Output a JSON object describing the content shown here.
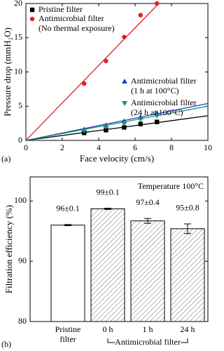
{
  "chart_data": [
    {
      "type": "scatter",
      "panel_label": "(a)",
      "x_label": "Face velocity (cm/s)",
      "y_label": "Pressure drop (mmH₂O)",
      "xlim": [
        0,
        10
      ],
      "ylim": [
        0,
        20
      ],
      "xticks": [
        0,
        2,
        4,
        6,
        8,
        10
      ],
      "yticks": [
        0,
        5,
        10,
        15,
        20
      ],
      "series": [
        {
          "name": "Pristine filter",
          "color": "#000000",
          "marker": "square",
          "x": [
            3.2,
            4.4,
            5.4,
            6.3,
            7.2
          ],
          "y": [
            1.1,
            1.5,
            1.9,
            2.4,
            2.7
          ],
          "fit_x": [
            0,
            10
          ],
          "fit_y": [
            0,
            3.6
          ]
        },
        {
          "name": "Antimicrobial filter\n(No thermal exposure)",
          "color": "#e02020",
          "marker": "circle",
          "x": [
            3.2,
            4.4,
            5.4,
            6.3,
            7.2
          ],
          "y": [
            8.3,
            11.6,
            15.1,
            18.3,
            20
          ],
          "fit_x": [
            0,
            7.3
          ],
          "fit_y": [
            0,
            20
          ]
        },
        {
          "name": "Antimicrobial filter\n(1 h at 100°C)",
          "color": "#2040c0",
          "marker": "triangle-up",
          "x": [
            3.2,
            4.4,
            5.4,
            6.3,
            7.2
          ],
          "y": [
            1.6,
            2.2,
            2.8,
            3.4,
            4.0
          ],
          "fit_x": [
            0,
            10
          ],
          "fit_y": [
            0,
            5.4
          ]
        },
        {
          "name": "Antimicrobial filter\n(24 h at 100°C)",
          "color": "#1a9070",
          "marker": "triangle-down",
          "x": [
            3.2,
            4.4,
            5.4,
            6.3,
            7.2
          ],
          "y": [
            1.4,
            2.0,
            2.5,
            3.1,
            3.6
          ],
          "fit_x": [
            0,
            10
          ],
          "fit_y": [
            0,
            5.0
          ]
        }
      ]
    },
    {
      "type": "bar",
      "panel_label": "(b)",
      "y_label": "Filtration efficiency (%)",
      "annotation": "Temperature 100°C",
      "group_label": "Antimicrobial filter",
      "categories": [
        "Pristine\nfilter",
        "0 h",
        "1 h",
        "24 h"
      ],
      "values": [
        96,
        98.7,
        96.7,
        95.4
      ],
      "errors": [
        0.1,
        0.1,
        0.4,
        0.8
      ],
      "value_labels": [
        "96±0.1",
        "99±0.1",
        "97±0.4",
        "95±0.8"
      ],
      "hatched": [
        false,
        true,
        true,
        true
      ],
      "ylim": [
        80,
        104
      ],
      "yticks": [
        80,
        90,
        100
      ]
    }
  ]
}
